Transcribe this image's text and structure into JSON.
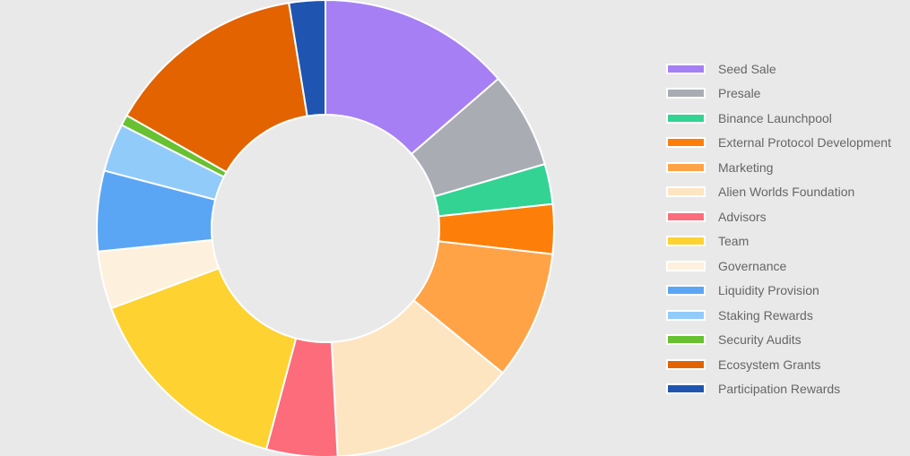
{
  "chart_data": {
    "type": "pie",
    "donut": true,
    "legend_position": "right",
    "slices": [
      {
        "label": "Seed Sale",
        "value": 14.4,
        "color": "#a67ff5"
      },
      {
        "label": "Presale",
        "value": 7.2,
        "color": "#a9adb3"
      },
      {
        "label": "Binance Launchpool",
        "value": 3.0,
        "color": "#33d394"
      },
      {
        "label": "External Protocol Development",
        "value": 3.7,
        "color": "#fd7f0a"
      },
      {
        "label": "Marketing",
        "value": 9.6,
        "color": "#ffa346"
      },
      {
        "label": "Alien Worlds Foundation",
        "value": 14.0,
        "color": "#fde5c2"
      },
      {
        "label": "Advisors",
        "value": 5.3,
        "color": "#fc6c7b"
      },
      {
        "label": "Team",
        "value": 16.0,
        "color": "#fdd231"
      },
      {
        "label": "Governance",
        "value": 4.3,
        "color": "#fdf1de"
      },
      {
        "label": "Liquidity Provision",
        "value": 6.0,
        "color": "#5ba6f4"
      },
      {
        "label": "Staking Rewards",
        "value": 3.6,
        "color": "#91cbfa"
      },
      {
        "label": "Security Audits",
        "value": 0.8,
        "color": "#67c131"
      },
      {
        "label": "Ecosystem Grants",
        "value": 15.0,
        "color": "#e26300"
      },
      {
        "label": "Participation Rewards",
        "value": 2.7,
        "color": "#1f55b0"
      }
    ]
  }
}
